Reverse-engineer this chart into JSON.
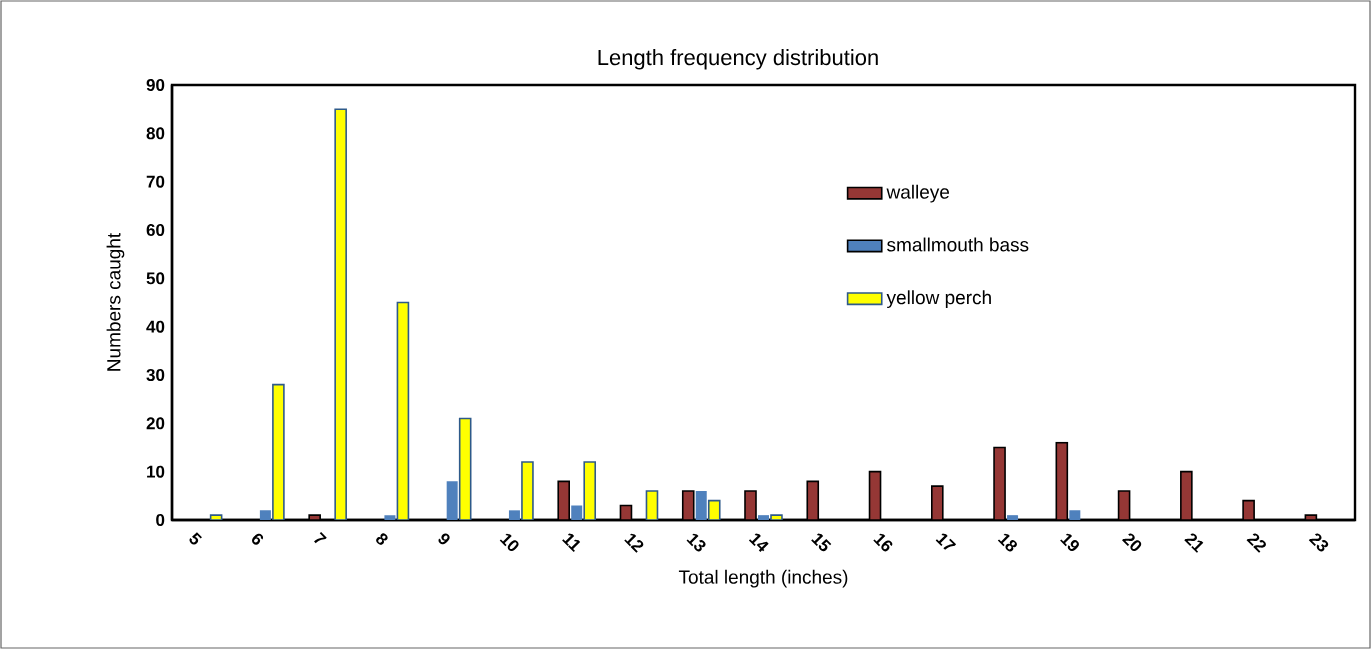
{
  "chart_data": {
    "type": "bar",
    "title": "Length frequency distribution",
    "xlabel": "Total length (inches)",
    "ylabel": "Numbers caught",
    "categories": [
      "5",
      "6",
      "7",
      "8",
      "9",
      "10",
      "11",
      "12",
      "13",
      "14",
      "15",
      "16",
      "17",
      "18",
      "19",
      "20",
      "21",
      "22",
      "23"
    ],
    "series": [
      {
        "name": "walleye",
        "color": "#953735",
        "values": [
          0,
          0,
          1,
          0,
          0,
          0,
          8,
          3,
          6,
          6,
          8,
          10,
          7,
          15,
          16,
          6,
          10,
          4,
          1
        ]
      },
      {
        "name": "smallmouth bass",
        "color": "#4f81bd",
        "values": [
          0,
          2,
          0,
          1,
          8,
          2,
          3,
          0,
          6,
          1,
          0,
          0,
          0,
          1,
          2,
          0,
          0,
          0,
          0
        ]
      },
      {
        "name": "yellow perch",
        "color": "#ffff00",
        "values": [
          1,
          28,
          85,
          45,
          21,
          12,
          12,
          6,
          4,
          1,
          0,
          0,
          0,
          0,
          0,
          0,
          0,
          0,
          0
        ]
      }
    ],
    "ylim": [
      0,
      90
    ],
    "yticks": [
      0,
      10,
      20,
      30,
      40,
      50,
      60,
      70,
      80,
      90
    ],
    "grid": false,
    "legend": "right"
  }
}
